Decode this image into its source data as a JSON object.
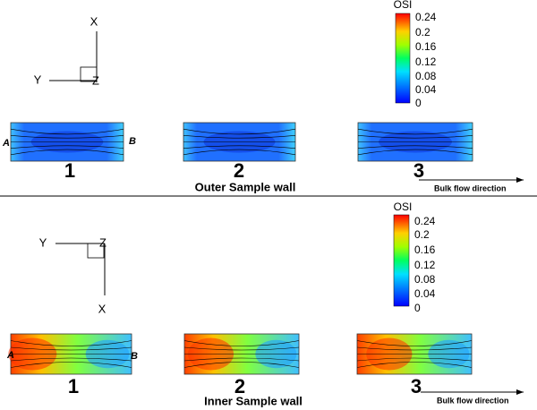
{
  "panels": [
    {
      "axes": {
        "x": "X",
        "y": "Y",
        "z": "Z"
      },
      "colorbar": {
        "title": "OSI",
        "ticks": [
          "0.24",
          "0.2",
          "0.16",
          "0.12",
          "0.08",
          "0.04",
          "0"
        ]
      },
      "ends": {
        "a": "A",
        "b": "B"
      },
      "numbers": [
        "1",
        "2",
        "3"
      ],
      "caption": "Outer Sample wall",
      "flow": "Bulk flow direction"
    },
    {
      "axes": {
        "x": "X",
        "y": "Y",
        "z": "Z"
      },
      "colorbar": {
        "title": "OSI",
        "ticks": [
          "0.24",
          "0.2",
          "0.16",
          "0.12",
          "0.08",
          "0.04",
          "0"
        ]
      },
      "ends": {
        "a": "A",
        "b": "B"
      },
      "numbers": [
        "1",
        "2",
        "3"
      ],
      "caption": "Inner Sample wall",
      "flow": "Bulk flow direction"
    }
  ]
}
